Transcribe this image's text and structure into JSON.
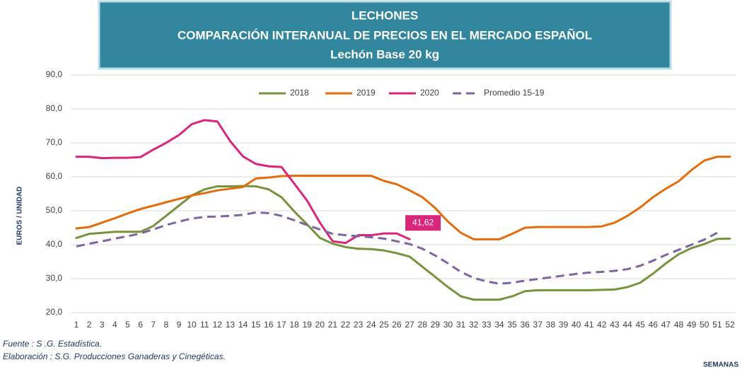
{
  "chart_data": {
    "type": "line",
    "title": [
      "LECHONES",
      "COMPARACIÓN INTERANUAL DE PRECIOS EN EL MERCADO ESPAÑOL",
      "Lechón Base 20 kg"
    ],
    "y_label": "EUROS / UNIDAD",
    "x_label": "SEMANAS",
    "footnotes": [
      "Fuente :  S .G. Estadística.",
      "Elaboración : S.G. Producciones Ganaderas y Cinegéticas."
    ],
    "categories": [
      "1",
      "2",
      "3",
      "4",
      "5",
      "6",
      "7",
      "8",
      "9",
      "10",
      "11",
      "12",
      "13",
      "14",
      "15",
      "16",
      "17",
      "18",
      "19",
      "20",
      "21",
      "22",
      "23",
      "24",
      "25",
      "26",
      "27",
      "28",
      "29",
      "30",
      "31",
      "32",
      "33",
      "34",
      "35",
      "36",
      "37",
      "38",
      "39",
      "40",
      "41",
      "42",
      "43",
      "44",
      "45",
      "46",
      "47",
      "48",
      "49",
      "50",
      "51",
      "52"
    ],
    "ylim": [
      20,
      90
    ],
    "yticks": [
      {
        "value": 20,
        "label": "20,0"
      },
      {
        "value": 30,
        "label": "30,0"
      },
      {
        "value": 40,
        "label": "40,0"
      },
      {
        "value": 50,
        "label": "50,0"
      },
      {
        "value": 60,
        "label": "60,0"
      },
      {
        "value": 70,
        "label": "70,0"
      },
      {
        "value": 80,
        "label": "80,0"
      },
      {
        "value": 90,
        "label": "90,0"
      }
    ],
    "grid": true,
    "legend": "top",
    "series": [
      {
        "name": "2018",
        "color": "#77933c",
        "dashed": false,
        "values": [
          42,
          43.2,
          43.5,
          43.8,
          43.8,
          43.8,
          45.5,
          48.5,
          51.5,
          54.5,
          56.3,
          57.2,
          57.2,
          57.3,
          57.2,
          56.3,
          54,
          49.8,
          46,
          42,
          40.3,
          39.3,
          38.8,
          38.7,
          38.3,
          37.5,
          36.5,
          33.5,
          30.5,
          27.5,
          24.8,
          23.8,
          23.8,
          23.8,
          24.8,
          26.3,
          26.6,
          26.6,
          26.6,
          26.6,
          26.6,
          26.7,
          26.8,
          27.5,
          28.8,
          31.5,
          34.5,
          37.2,
          39,
          40.2,
          41.7,
          41.8
        ]
      },
      {
        "name": "2019",
        "color": "#e46c0a",
        "dashed": false,
        "values": [
          44.8,
          45.2,
          46.5,
          47.8,
          49.2,
          50.5,
          51.5,
          52.5,
          53.5,
          54.5,
          55.2,
          56,
          56.5,
          57,
          59.5,
          59.8,
          60.2,
          60.3,
          60.3,
          60.3,
          60.3,
          60.3,
          60.3,
          60.3,
          58.8,
          57.8,
          56,
          54,
          50.8,
          46.8,
          43.5,
          41.6,
          41.6,
          41.6,
          43.2,
          45,
          45.2,
          45.2,
          45.2,
          45.2,
          45.2,
          45.4,
          46.5,
          48.5,
          51,
          54,
          56.5,
          58.7,
          62,
          64.8,
          65.9,
          65.9
        ]
      },
      {
        "name": "2020",
        "color": "#d9267a",
        "dashed": false,
        "values": [
          65.9,
          65.9,
          65.5,
          65.6,
          65.6,
          65.8,
          68,
          70,
          72.3,
          75.5,
          76.7,
          76.3,
          70.5,
          66,
          63.8,
          63.1,
          62.9,
          58,
          53,
          46.5,
          41,
          40.5,
          42.8,
          42.8,
          43.3,
          43.3,
          41.62,
          null,
          null,
          null,
          null,
          null,
          null,
          null,
          null,
          null,
          null,
          null,
          null,
          null,
          null,
          null,
          null,
          null,
          null,
          null,
          null,
          null,
          null,
          null,
          null,
          null
        ],
        "value_labels": [
          null,
          null,
          null,
          null,
          null,
          null,
          null,
          null,
          null,
          null,
          null,
          null,
          null,
          null,
          null,
          null,
          null,
          null,
          null,
          null,
          null,
          null,
          null,
          null,
          null,
          null,
          "41,62",
          null,
          null,
          null,
          null,
          null,
          null,
          null,
          null,
          null,
          null,
          null,
          null,
          null,
          null,
          null,
          null,
          null,
          null,
          null,
          null,
          null,
          null,
          null,
          null,
          null
        ]
      },
      {
        "name": "Promedio 15-19",
        "color": "#8064a2",
        "dashed": true,
        "values": [
          39.5,
          40.3,
          41,
          41.8,
          42.5,
          43.3,
          44.5,
          45.8,
          46.8,
          47.7,
          48.2,
          48.3,
          48.5,
          48.8,
          49.5,
          49.3,
          48.5,
          47.2,
          45.8,
          44.5,
          43.2,
          42.8,
          42.5,
          42.2,
          41.8,
          41,
          40.2,
          38.8,
          36.8,
          34.5,
          32,
          30.2,
          29.2,
          28.5,
          28.8,
          29.4,
          29.9,
          30.4,
          30.9,
          31.4,
          31.8,
          32,
          32.3,
          32.8,
          33.8,
          35.3,
          37,
          38.5,
          40,
          41.5,
          43.5,
          null
        ]
      }
    ]
  }
}
